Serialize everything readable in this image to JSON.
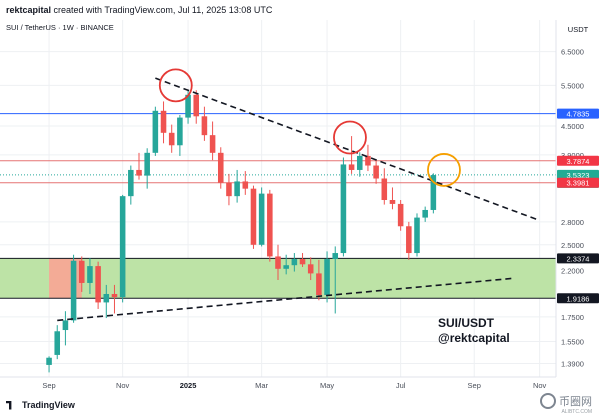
{
  "credit": "rektcapital created with TradingView.com, Jul 11, 2025 13:08 UTC",
  "credit_user": "rektcapital",
  "credit_rest": " created with TradingView.com, Jul 11, 2025 13:08 UTC",
  "footer_brand": "TradingView",
  "watermark_text": "币圈网",
  "watermark_sub": "ALIBTC.COM",
  "chart_data": {
    "type": "candlestick",
    "symbol_line": "SUI / TetherUS · 1W · BINANCE",
    "currency": "USDT",
    "watermark_title": "SUI/USDT",
    "watermark_handle": "@rektcapital",
    "y_scale": "log",
    "ylim": [
      1.3,
      7.6
    ],
    "y_ticks": [
      "6.5000",
      "5.5000",
      "4.5000",
      "3.9000",
      "2.8000",
      "2.5000",
      "2.2000",
      "1.7500",
      "1.5500",
      "1.3900"
    ],
    "x_ticks": [
      "Sep",
      "Nov",
      "2025",
      "Mar",
      "May",
      "Jul",
      "Sep",
      "Nov"
    ],
    "x_tick_index": [
      0,
      9,
      17,
      26,
      34,
      43,
      52,
      60
    ],
    "candles": [
      {
        "o": 1.38,
        "h": 1.44,
        "l": 1.33,
        "c": 1.43
      },
      {
        "o": 1.45,
        "h": 1.68,
        "l": 1.42,
        "c": 1.63
      },
      {
        "o": 1.64,
        "h": 1.8,
        "l": 1.52,
        "c": 1.72
      },
      {
        "o": 1.72,
        "h": 2.38,
        "l": 1.7,
        "c": 2.31
      },
      {
        "o": 2.31,
        "h": 2.36,
        "l": 1.98,
        "c": 2.07
      },
      {
        "o": 2.07,
        "h": 2.34,
        "l": 1.96,
        "c": 2.25
      },
      {
        "o": 2.25,
        "h": 2.3,
        "l": 1.82,
        "c": 1.88
      },
      {
        "o": 1.88,
        "h": 2.05,
        "l": 1.74,
        "c": 1.96
      },
      {
        "o": 1.96,
        "h": 2.05,
        "l": 1.78,
        "c": 1.93
      },
      {
        "o": 1.93,
        "h": 3.2,
        "l": 1.88,
        "c": 3.18
      },
      {
        "o": 3.18,
        "h": 3.7,
        "l": 3.05,
        "c": 3.62
      },
      {
        "o": 3.62,
        "h": 3.94,
        "l": 3.45,
        "c": 3.52
      },
      {
        "o": 3.52,
        "h": 4.03,
        "l": 3.3,
        "c": 3.94
      },
      {
        "o": 3.94,
        "h": 4.95,
        "l": 3.88,
        "c": 4.85
      },
      {
        "o": 4.85,
        "h": 5.08,
        "l": 4.13,
        "c": 4.35
      },
      {
        "o": 4.35,
        "h": 4.53,
        "l": 3.94,
        "c": 4.09
      },
      {
        "o": 4.09,
        "h": 4.75,
        "l": 3.88,
        "c": 4.69
      },
      {
        "o": 4.69,
        "h": 5.35,
        "l": 4.55,
        "c": 5.25
      },
      {
        "o": 5.25,
        "h": 5.37,
        "l": 4.55,
        "c": 4.72
      },
      {
        "o": 4.72,
        "h": 4.95,
        "l": 4.18,
        "c": 4.3
      },
      {
        "o": 4.3,
        "h": 4.6,
        "l": 3.8,
        "c": 3.94
      },
      {
        "o": 3.94,
        "h": 4.05,
        "l": 3.3,
        "c": 3.4
      },
      {
        "o": 3.4,
        "h": 3.55,
        "l": 3.04,
        "c": 3.18
      },
      {
        "o": 3.18,
        "h": 3.62,
        "l": 3.08,
        "c": 3.42
      },
      {
        "o": 3.42,
        "h": 3.6,
        "l": 3.2,
        "c": 3.3
      },
      {
        "o": 3.3,
        "h": 3.35,
        "l": 2.45,
        "c": 2.5
      },
      {
        "o": 2.5,
        "h": 3.32,
        "l": 2.48,
        "c": 3.22
      },
      {
        "o": 3.22,
        "h": 3.28,
        "l": 2.3,
        "c": 2.36
      },
      {
        "o": 2.36,
        "h": 2.5,
        "l": 2.1,
        "c": 2.22
      },
      {
        "o": 2.22,
        "h": 2.38,
        "l": 2.16,
        "c": 2.26
      },
      {
        "o": 2.26,
        "h": 2.4,
        "l": 2.19,
        "c": 2.33
      },
      {
        "o": 2.33,
        "h": 2.4,
        "l": 2.24,
        "c": 2.27
      },
      {
        "o": 2.27,
        "h": 2.35,
        "l": 2.1,
        "c": 2.17
      },
      {
        "o": 2.17,
        "h": 2.32,
        "l": 1.9,
        "c": 1.95
      },
      {
        "o": 1.95,
        "h": 2.42,
        "l": 1.88,
        "c": 2.33
      },
      {
        "o": 2.33,
        "h": 2.48,
        "l": 1.78,
        "c": 2.4
      },
      {
        "o": 2.4,
        "h": 3.85,
        "l": 2.36,
        "c": 3.72
      },
      {
        "o": 3.72,
        "h": 4.28,
        "l": 3.55,
        "c": 3.62
      },
      {
        "o": 3.62,
        "h": 3.95,
        "l": 3.5,
        "c": 3.88
      },
      {
        "o": 3.88,
        "h": 4.1,
        "l": 3.6,
        "c": 3.7
      },
      {
        "o": 3.7,
        "h": 3.82,
        "l": 3.38,
        "c": 3.47
      },
      {
        "o": 3.47,
        "h": 3.65,
        "l": 3.05,
        "c": 3.12
      },
      {
        "o": 3.12,
        "h": 3.32,
        "l": 2.98,
        "c": 3.06
      },
      {
        "o": 3.06,
        "h": 3.12,
        "l": 2.68,
        "c": 2.74
      },
      {
        "o": 2.74,
        "h": 2.8,
        "l": 2.32,
        "c": 2.4
      },
      {
        "o": 2.4,
        "h": 2.92,
        "l": 2.36,
        "c": 2.86
      },
      {
        "o": 2.86,
        "h": 3.02,
        "l": 2.8,
        "c": 2.97
      },
      {
        "o": 2.97,
        "h": 3.56,
        "l": 2.92,
        "c": 3.53
      }
    ],
    "horizontal_levels": [
      {
        "value": 4.7835,
        "label": "4.7835",
        "color": "#2962ff",
        "label_bg": "#2962ff",
        "label_color": "#ffffff"
      },
      {
        "value": 3.7874,
        "label": "3.7874",
        "color": "#e57373",
        "label_bg": "#f23645",
        "label_color": "#ffffff"
      },
      {
        "value": 3.5323,
        "label": "3.5323",
        "color": "#26a69a",
        "label_bg": "#22ab94",
        "label_color": "#ffffff",
        "extra": "2d 11h"
      },
      {
        "value": 3.3981,
        "label": "3.3981",
        "color": "#e57373",
        "label_bg": "#f23645",
        "label_color": "#ffffff"
      },
      {
        "value": 2.3374,
        "label": "2.3374",
        "color": "#131722",
        "label_bg": "#131722",
        "label_color": "#ffffff"
      },
      {
        "value": 1.9186,
        "label": "1.9186",
        "color": "#131722",
        "label_bg": "#131722",
        "label_color": "#ffffff"
      }
    ],
    "zones": [
      {
        "low": 1.9186,
        "high": 2.3374,
        "color": "#b9e1a1"
      },
      {
        "low": 1.9186,
        "high": 2.3374,
        "color": "#f6a895",
        "from": 0,
        "to": 4
      }
    ],
    "trendlines": [
      {
        "kind": "descending",
        "from": {
          "i": 13,
          "v": 5.7
        },
        "to": {
          "i": 60,
          "v": 2.82
        }
      },
      {
        "kind": "ascending",
        "from": {
          "i": 1,
          "v": 1.72
        },
        "to": {
          "i": 57,
          "v": 2.12
        }
      }
    ],
    "highlight_circles": [
      {
        "i": 15.5,
        "v": 5.5,
        "color": "#e53935"
      },
      {
        "i": 36.8,
        "v": 4.25,
        "color": "#e53935"
      },
      {
        "i": 48.3,
        "v": 3.62,
        "color": "#f59f00"
      }
    ],
    "bull_color": "#26a69a",
    "bear_color": "#ef5350",
    "grid": true
  }
}
